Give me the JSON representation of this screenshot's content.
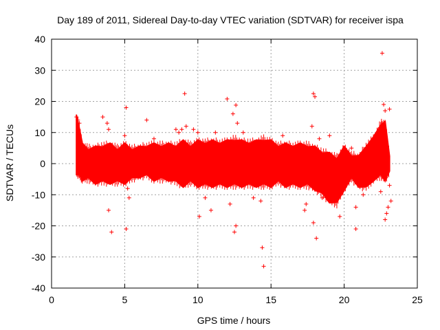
{
  "chart_data": {
    "type": "scatter",
    "title": "Day 189 of 2011, Sidereal Day-to-day VTEC variation (SDTVAR) for receiver ispa",
    "xlabel": "GPS time / hours",
    "ylabel": "SDTVAR / TECUs",
    "xlim": [
      0,
      25
    ],
    "ylim": [
      -40,
      40
    ],
    "xticks": [
      "0",
      "5",
      "10",
      "15",
      "20",
      "25"
    ],
    "yticks": [
      "-40",
      "-30",
      "-20",
      "-10",
      "0",
      "10",
      "20",
      "30",
      "40"
    ],
    "grid": true,
    "marker": "+",
    "series": [
      {
        "name": "SDTVAR",
        "color": "#ff0000",
        "band": [
          [
            1.7,
            -3,
            15
          ],
          [
            1.9,
            -4,
            12
          ],
          [
            2.1,
            -5,
            6
          ],
          [
            2.5,
            -5,
            5
          ],
          [
            3.0,
            -6,
            5
          ],
          [
            3.5,
            -6,
            6
          ],
          [
            4.0,
            -6,
            6
          ],
          [
            4.5,
            -6,
            5
          ],
          [
            5.0,
            -6,
            6
          ],
          [
            5.5,
            -5,
            5
          ],
          [
            6.0,
            -4,
            5
          ],
          [
            6.5,
            -4,
            6
          ],
          [
            7.0,
            -5,
            6
          ],
          [
            7.5,
            -5,
            6
          ],
          [
            8.0,
            -5,
            6
          ],
          [
            8.5,
            -6,
            6
          ],
          [
            9.0,
            -7,
            7
          ],
          [
            9.5,
            -6,
            6
          ],
          [
            10.0,
            -7,
            7
          ],
          [
            10.5,
            -7,
            7
          ],
          [
            11.0,
            -7,
            7
          ],
          [
            11.5,
            -7,
            7
          ],
          [
            12.0,
            -7,
            7
          ],
          [
            12.5,
            -7,
            8
          ],
          [
            13.0,
            -7,
            7
          ],
          [
            13.5,
            -7,
            7
          ],
          [
            14.0,
            -7,
            7
          ],
          [
            14.5,
            -7,
            8
          ],
          [
            15.0,
            -7,
            7
          ],
          [
            15.5,
            -6,
            6
          ],
          [
            16.0,
            -7,
            6
          ],
          [
            16.5,
            -7,
            6
          ],
          [
            17.0,
            -7,
            6
          ],
          [
            17.5,
            -7,
            6
          ],
          [
            18.0,
            -8,
            5
          ],
          [
            18.5,
            -10,
            4
          ],
          [
            19.0,
            -12,
            3
          ],
          [
            19.5,
            -13,
            2
          ],
          [
            20.0,
            -8,
            5
          ],
          [
            20.5,
            -5,
            3
          ],
          [
            21.0,
            -7,
            2
          ],
          [
            21.5,
            -8,
            6
          ],
          [
            22.0,
            -5,
            8
          ],
          [
            22.5,
            -4,
            13
          ],
          [
            22.8,
            -5,
            13
          ],
          [
            23.1,
            -3,
            3
          ]
        ],
        "points": [
          [
            1.7,
            15
          ],
          [
            1.8,
            14
          ],
          [
            1.9,
            13
          ],
          [
            3.5,
            15
          ],
          [
            3.8,
            13
          ],
          [
            3.9,
            11
          ],
          [
            4.1,
            6
          ],
          [
            3.9,
            -15
          ],
          [
            4.1,
            -22
          ],
          [
            5.1,
            18
          ],
          [
            5.0,
            9
          ],
          [
            5.1,
            -21
          ],
          [
            5.3,
            -11
          ],
          [
            5.2,
            -8
          ],
          [
            6.5,
            14
          ],
          [
            7.0,
            8
          ],
          [
            8.5,
            11
          ],
          [
            8.7,
            10
          ],
          [
            8.9,
            11
          ],
          [
            9.1,
            22.5
          ],
          [
            9.2,
            12
          ],
          [
            9.7,
            11
          ],
          [
            10.0,
            10
          ],
          [
            10.1,
            -17
          ],
          [
            10.5,
            -11
          ],
          [
            10.9,
            -15
          ],
          [
            11.2,
            10
          ],
          [
            12.0,
            20.8
          ],
          [
            12.2,
            -13
          ],
          [
            12.4,
            16
          ],
          [
            12.6,
            18.8
          ],
          [
            12.7,
            13
          ],
          [
            12.6,
            -20
          ],
          [
            12.5,
            -22
          ],
          [
            13.1,
            10
          ],
          [
            13.8,
            -11
          ],
          [
            14.4,
            -27
          ],
          [
            14.5,
            -33
          ],
          [
            14.3,
            -12
          ],
          [
            15.8,
            9
          ],
          [
            17.3,
            -15
          ],
          [
            17.4,
            -13
          ],
          [
            17.8,
            12
          ],
          [
            17.9,
            22.5
          ],
          [
            18.0,
            21.5
          ],
          [
            17.9,
            -19
          ],
          [
            18.1,
            -24
          ],
          [
            18.3,
            8
          ],
          [
            18.5,
            -11
          ],
          [
            19.0,
            9
          ],
          [
            19.7,
            -17
          ],
          [
            20.5,
            5
          ],
          [
            20.8,
            -14
          ],
          [
            20.8,
            -21
          ],
          [
            21.3,
            -10
          ],
          [
            22.0,
            8
          ],
          [
            22.5,
            -9
          ],
          [
            22.6,
            35.5
          ],
          [
            22.7,
            19
          ],
          [
            22.8,
            17
          ],
          [
            22.8,
            -18
          ],
          [
            22.9,
            -16
          ],
          [
            23.0,
            -14
          ],
          [
            23.1,
            17.5
          ],
          [
            23.1,
            -7
          ],
          [
            23.2,
            -12
          ]
        ]
      }
    ]
  }
}
